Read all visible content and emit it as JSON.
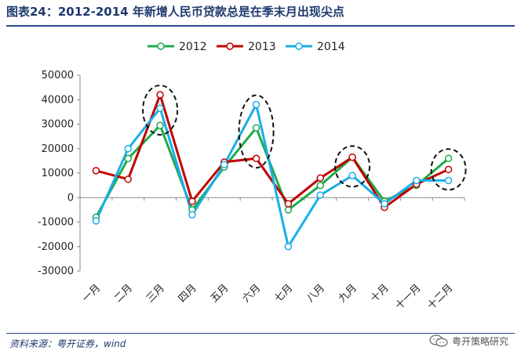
{
  "title": "图表24：2012-2014 年新增人民币贷款总是在季末月出现尖点",
  "source": "资料来源：粤开证券，wind",
  "watermark": "粤开策略研究",
  "watermark_icon": "wechat-icon",
  "chart_data": {
    "type": "line",
    "categories": [
      "一月",
      "二月",
      "三月",
      "四月",
      "五月",
      "六月",
      "七月",
      "八月",
      "九月",
      "十月",
      "十一月",
      "十二月"
    ],
    "series": [
      {
        "name": "2012",
        "color": "#1faa4a",
        "values": [
          -8000,
          16000,
          29500,
          -5000,
          12500,
          28500,
          -5000,
          5000,
          16500,
          -1500,
          5000,
          16000
        ]
      },
      {
        "name": "2013",
        "color": "#c00000",
        "values": [
          11000,
          7500,
          42000,
          -1500,
          14500,
          16000,
          -2500,
          8000,
          16500,
          -4000,
          5500,
          11500
        ]
      },
      {
        "name": "2014",
        "color": "#1aaee8",
        "values": [
          -9500,
          20000,
          36500,
          -7000,
          13500,
          38000,
          -20000,
          1000,
          9000,
          -2500,
          7000,
          7000
        ]
      }
    ],
    "ylim": [
      -30000,
      50000
    ],
    "yticks": [
      -30000,
      -20000,
      -10000,
      0,
      10000,
      20000,
      30000,
      40000,
      50000
    ],
    "legend": "top-center",
    "highlight_months": [
      "三月",
      "六月",
      "九月",
      "十二月"
    ],
    "highlight_style": "dashed-ellipse"
  }
}
